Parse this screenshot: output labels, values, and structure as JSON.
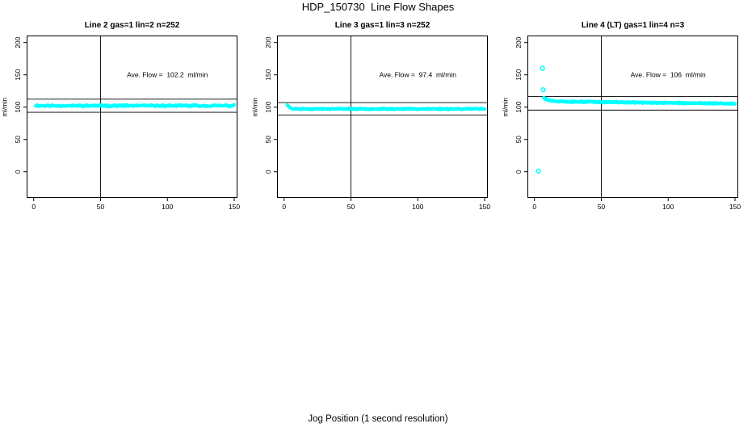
{
  "title": "HDP_150730  Line Flow Shapes",
  "xlabel": "Jog Position (1 second resolution)",
  "colors": {
    "point": "#00FFFF",
    "axis": "#000000",
    "text": "#000000",
    "background": "#FFFFFF"
  },
  "chart_data": [
    {
      "type": "scatter",
      "title": "Line 2 gas=1 lin=2 n=252",
      "annotation": "Ave. Flow =  102.2  ml/min",
      "ave_flow": 102.2,
      "n": 252,
      "ylabel": "ml/min",
      "x_ticks": [
        0,
        50,
        100,
        150
      ],
      "y_ticks": [
        0,
        50,
        100,
        150,
        200
      ],
      "xlim": [
        -5,
        156
      ],
      "ylim": [
        -40,
        210
      ],
      "vline_x": 50,
      "ref_lines": [
        112.4,
        92.0
      ],
      "grid": false,
      "points_model": {
        "x_start": 1.5,
        "x_end": 150,
        "count": 252,
        "runs": 1,
        "base": 102.2,
        "slope": 0,
        "transient_amp": 0.5,
        "transient_tau": 2.0,
        "noise": 1.7,
        "seed": 11,
        "marker_r": 1.5
      },
      "outliers": [],
      "outlier_r": 2.4
    },
    {
      "type": "scatter",
      "title": "Line 3 gas=1 lin=3 n=252",
      "annotation": "Ave. Flow =  97.4  ml/min",
      "ave_flow": 97.4,
      "n": 252,
      "ylabel": "ml/min",
      "x_ticks": [
        0,
        50,
        100,
        150
      ],
      "y_ticks": [
        0,
        50,
        100,
        150,
        200
      ],
      "xlim": [
        -5,
        156
      ],
      "ylim": [
        -40,
        210
      ],
      "vline_x": 50,
      "ref_lines": [
        107.1,
        87.7
      ],
      "grid": false,
      "points_model": {
        "x_start": 2.5,
        "x_end": 150,
        "count": 252,
        "runs": 1,
        "base": 97.3,
        "slope": 0,
        "transient_amp": 6.4,
        "transient_tau": 1.6,
        "noise": 1.2,
        "seed": 23,
        "marker_r": 1.5
      },
      "outliers": [],
      "outlier_r": 2.4
    },
    {
      "type": "scatter",
      "title": "Line 4 (LT) gas=1 lin=4 n=3",
      "annotation": "Ave. Flow =  106  ml/min",
      "ave_flow": 106,
      "n": 3,
      "ylabel": "ml/min",
      "x_ticks": [
        0,
        50,
        100,
        150
      ],
      "y_ticks": [
        0,
        50,
        100,
        150,
        200
      ],
      "xlim": [
        -5,
        156
      ],
      "ylim": [
        -40,
        210
      ],
      "vline_x": 50,
      "ref_lines": [
        116.6,
        95.4
      ],
      "grid": false,
      "points_model": {
        "x_start": 7,
        "x_end": 150,
        "count": 150,
        "runs": 3,
        "base": 109.1,
        "slope": -0.0247,
        "transient_amp": 6.0,
        "transient_tau": 3.5,
        "noise": 1.25,
        "seed": 37,
        "marker_r": 1.5
      },
      "outliers": [
        [
          3,
          1
        ],
        [
          6,
          160
        ],
        [
          6.5,
          127
        ]
      ],
      "outlier_r": 2.4
    }
  ]
}
